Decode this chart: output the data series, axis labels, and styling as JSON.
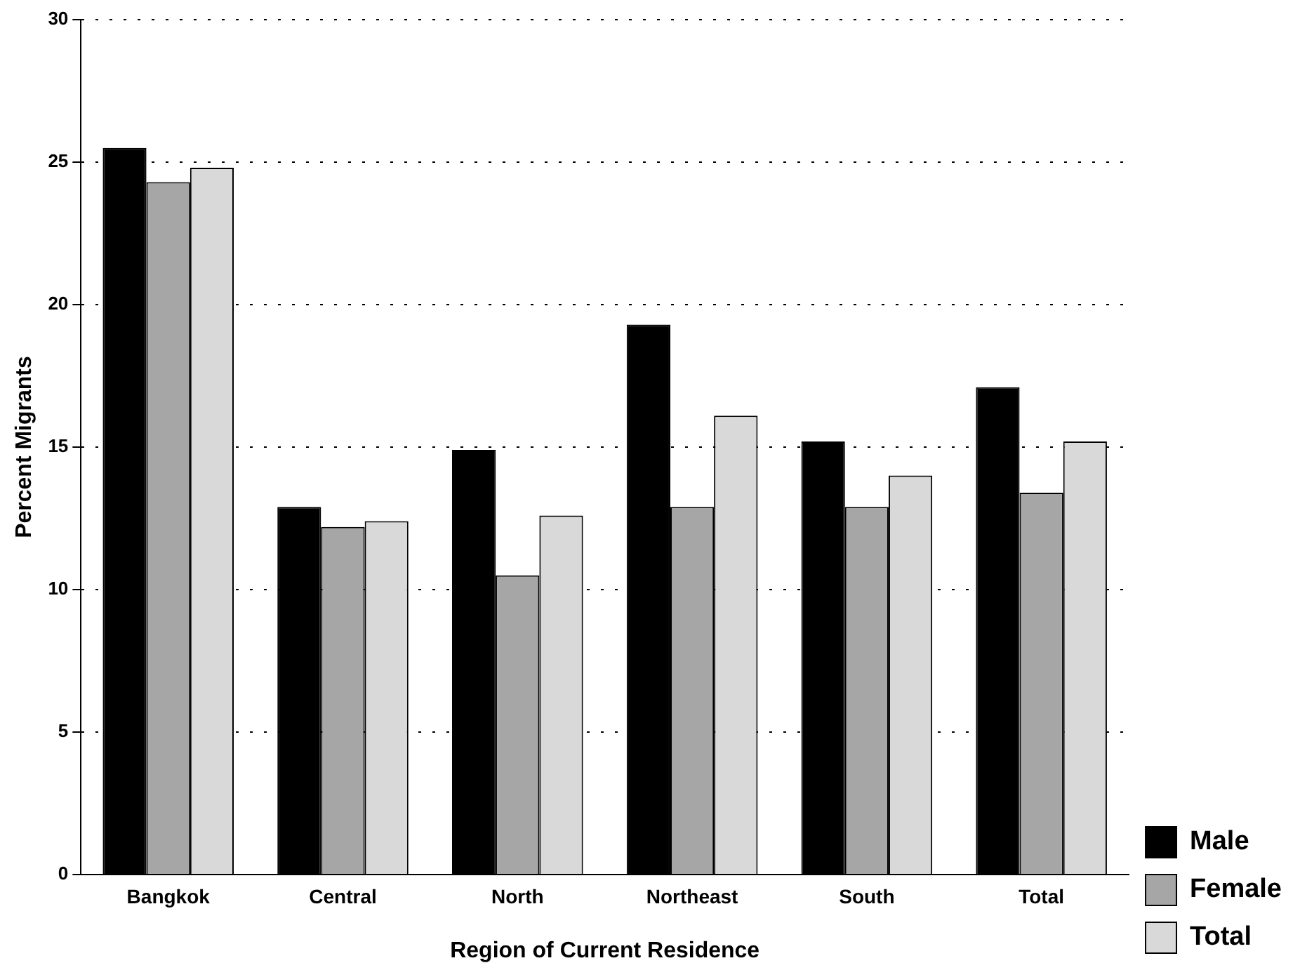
{
  "chart_data": {
    "type": "bar",
    "xlabel": "Region of Current Residence",
    "ylabel": "Percent Migrants",
    "categories": [
      "Bangkok",
      "Central",
      "North",
      "Northeast",
      "South",
      "Total"
    ],
    "series": [
      {
        "name": "Male",
        "color": "#000000",
        "values": [
          25.5,
          12.9,
          14.9,
          19.3,
          15.2,
          17.1
        ]
      },
      {
        "name": "Female",
        "color": "#a6a6a6",
        "values": [
          24.3,
          12.2,
          10.5,
          12.9,
          12.9,
          13.4
        ]
      },
      {
        "name": "Total",
        "color": "#d9d9d9",
        "values": [
          24.8,
          12.4,
          12.6,
          16.1,
          14.0,
          15.2
        ]
      }
    ],
    "ylim": [
      0,
      30
    ],
    "yticks": [
      0,
      5,
      10,
      15,
      20,
      25,
      30
    ],
    "grid": "y",
    "legend": "bottom right"
  }
}
